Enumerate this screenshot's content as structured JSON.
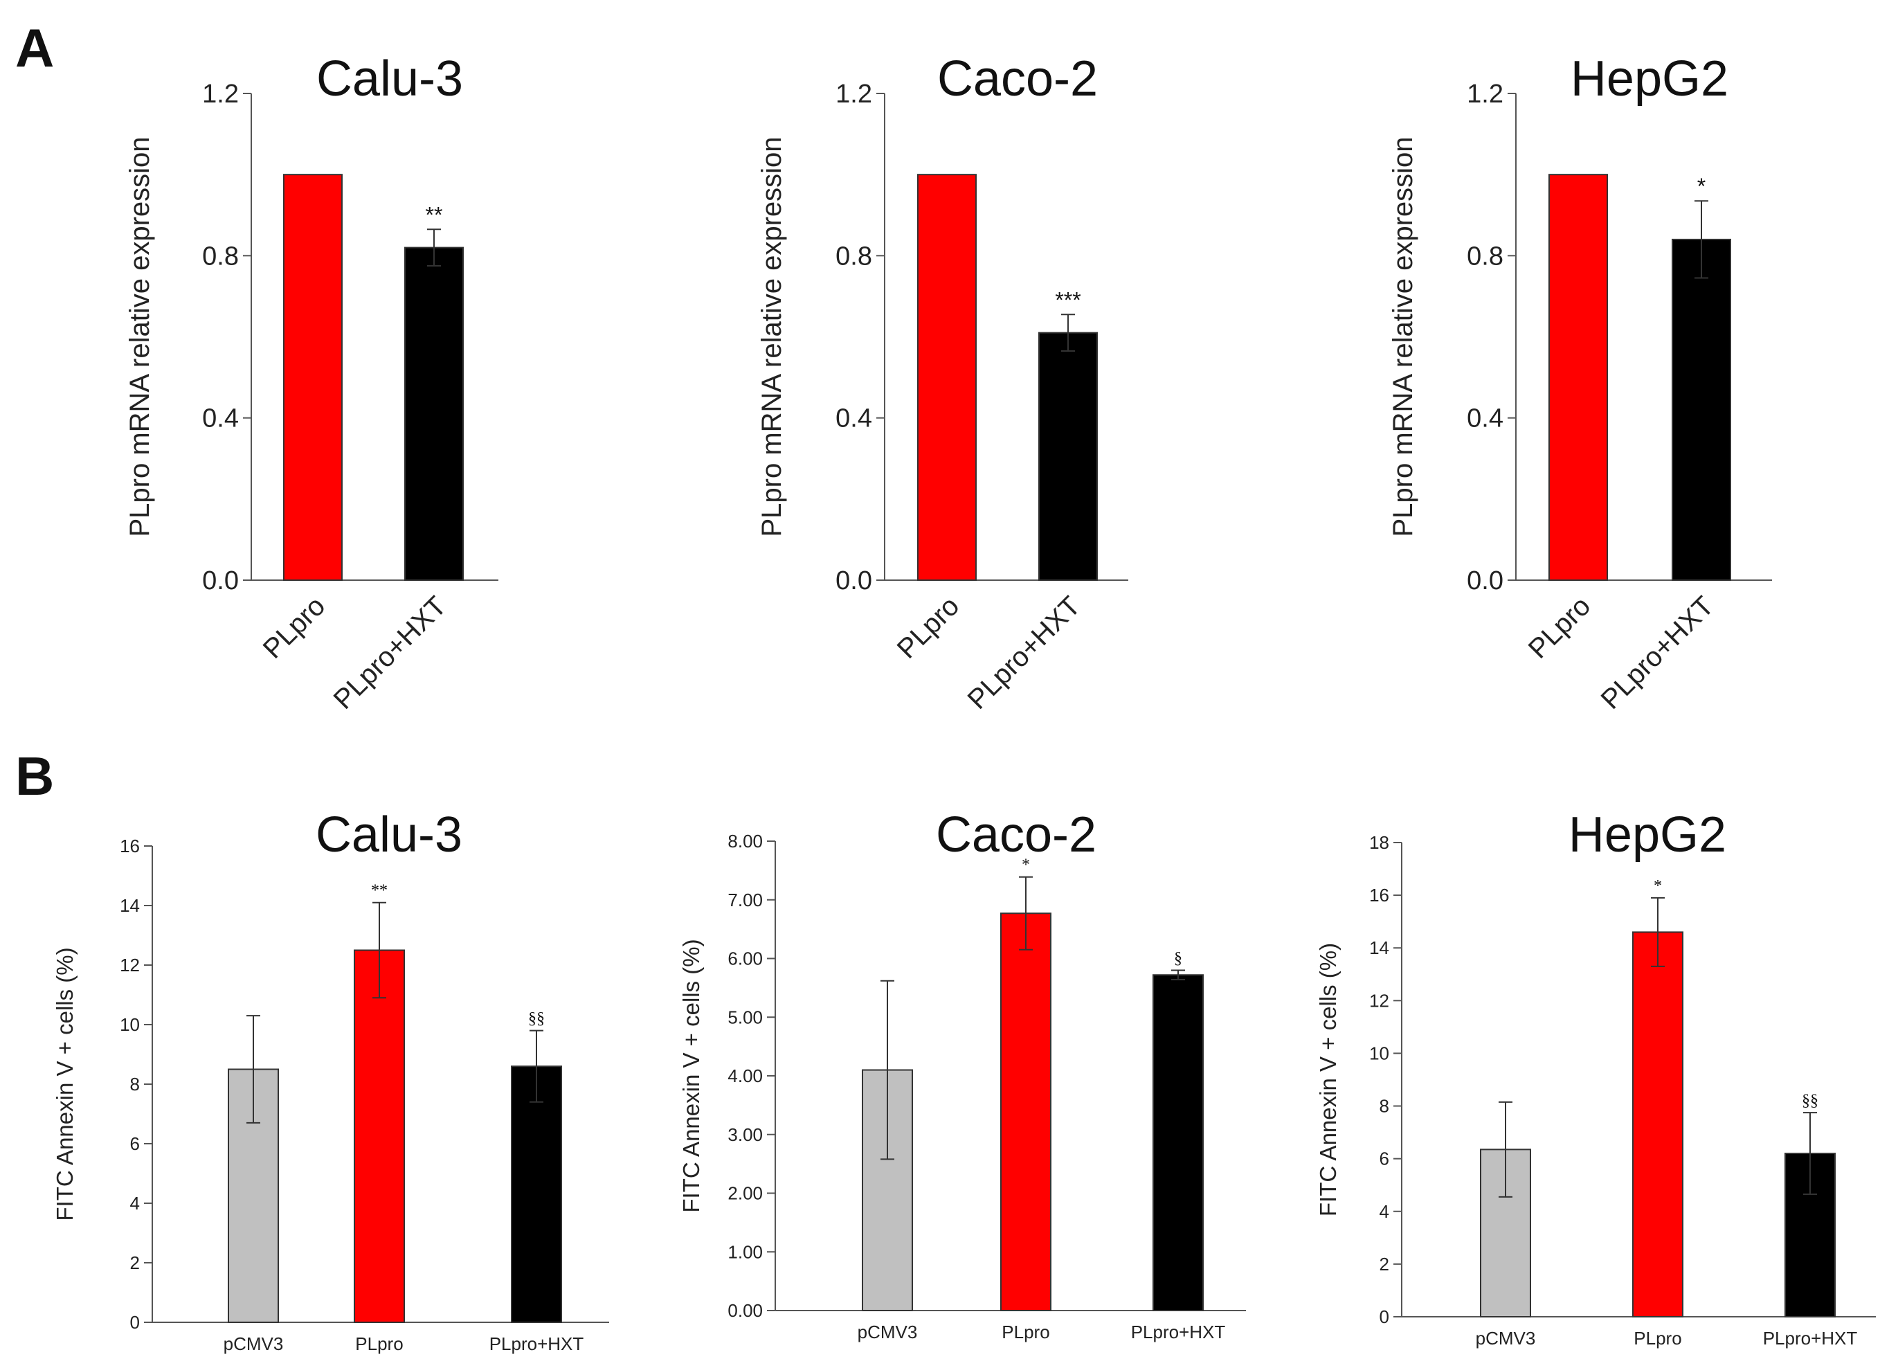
{
  "panels": [
    {
      "letter": "A"
    },
    {
      "letter": "B"
    }
  ],
  "chart_data": [
    {
      "panel": "A",
      "type": "bar",
      "title": "Calu-3",
      "ylabel": "PLpro mRNA relative expression",
      "xlabel": "",
      "ylim": [
        0,
        1.2
      ],
      "yticks": [
        "0.0",
        "0.4",
        "0.8",
        "1.2"
      ],
      "categories": [
        "PLpro",
        "PLpro+HXT"
      ],
      "values": [
        1.0,
        0.82
      ],
      "errors": [
        0,
        0.045
      ],
      "colors": [
        "#ff0000",
        "#000000"
      ],
      "significance": [
        "",
        "**"
      ]
    },
    {
      "panel": "A",
      "type": "bar",
      "title": "Caco-2",
      "ylabel": "PLpro mRNA relative expression",
      "xlabel": "",
      "ylim": [
        0,
        1.2
      ],
      "yticks": [
        "0.0",
        "0.4",
        "0.8",
        "1.2"
      ],
      "categories": [
        "PLpro",
        "PLpro+HXT"
      ],
      "values": [
        1.0,
        0.61
      ],
      "errors": [
        0,
        0.045
      ],
      "colors": [
        "#ff0000",
        "#000000"
      ],
      "significance": [
        "",
        "***"
      ]
    },
    {
      "panel": "A",
      "type": "bar",
      "title": "HepG2",
      "ylabel": "PLpro mRNA relative expression",
      "xlabel": "",
      "ylim": [
        0,
        1.2
      ],
      "yticks": [
        "0.0",
        "0.4",
        "0.8",
        "1.2"
      ],
      "categories": [
        "PLpro",
        "PLpro+HXT"
      ],
      "values": [
        1.0,
        0.84
      ],
      "errors": [
        0,
        0.095
      ],
      "colors": [
        "#ff0000",
        "#000000"
      ],
      "significance": [
        "",
        "*"
      ]
    },
    {
      "panel": "B",
      "type": "bar",
      "title": "Calu-3",
      "ylabel": "FITC Annexin V + cells (%)",
      "xlabel": "",
      "ylim": [
        0,
        16
      ],
      "yticks": [
        "0",
        "2",
        "4",
        "6",
        "8",
        "10",
        "12",
        "14",
        "16"
      ],
      "categories": [
        "pCMV3",
        "PLpro",
        "PLpro+HXT"
      ],
      "values": [
        8.5,
        12.5,
        8.6
      ],
      "errors": [
        1.8,
        1.6,
        1.2
      ],
      "colors": [
        "#c0c0c0",
        "#ff0000",
        "#000000"
      ],
      "significance": [
        "",
        "**",
        "§§"
      ]
    },
    {
      "panel": "B",
      "type": "bar",
      "title": "Caco-2",
      "ylabel": "FITC Annexin V + cells (%)",
      "xlabel": "",
      "ylim": [
        0,
        8
      ],
      "yticks": [
        "0.00",
        "1.00",
        "2.00",
        "3.00",
        "4.00",
        "5.00",
        "6.00",
        "7.00",
        "8.00"
      ],
      "categories": [
        "pCMV3",
        "PLpro",
        "PLpro+HXT"
      ],
      "values": [
        4.1,
        6.77,
        5.72
      ],
      "errors": [
        1.52,
        0.62,
        0.08
      ],
      "colors": [
        "#c0c0c0",
        "#ff0000",
        "#000000"
      ],
      "significance": [
        "",
        "*",
        "§"
      ]
    },
    {
      "panel": "B",
      "type": "bar",
      "title": "HepG2",
      "ylabel": "FITC Annexin V + cells (%)",
      "xlabel": "",
      "ylim": [
        0,
        18
      ],
      "yticks": [
        "0",
        "2",
        "4",
        "6",
        "8",
        "10",
        "12",
        "14",
        "16",
        "18"
      ],
      "categories": [
        "pCMV3",
        "PLpro",
        "PLpro+HXT"
      ],
      "values": [
        6.35,
        14.6,
        6.2
      ],
      "errors": [
        1.8,
        1.3,
        1.55
      ],
      "colors": [
        "#c0c0c0",
        "#ff0000",
        "#000000"
      ],
      "significance": [
        "",
        "*",
        "§§"
      ]
    }
  ]
}
